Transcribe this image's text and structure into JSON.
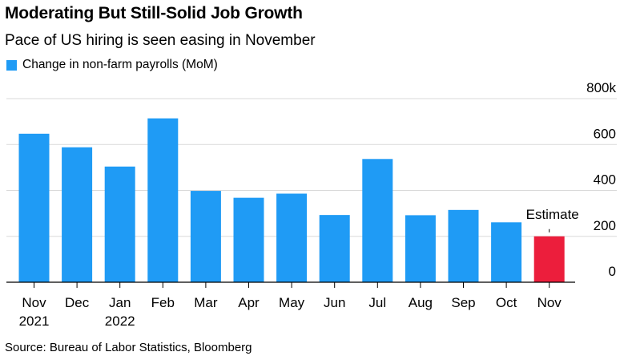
{
  "title": "Moderating But Still-Solid Job Growth",
  "subtitle": "Pace of US hiring is seen easing in November",
  "source": "Source: Bureau of Labor Statistics, Bloomberg",
  "colors": {
    "bar": "#1f9bf5",
    "estimate": "#ec1e3c",
    "grid": "#d9d9d9",
    "axis": "#000000"
  },
  "chart_data": {
    "type": "bar",
    "title": "Moderating But Still-Solid Job Growth",
    "subtitle": "Pace of US hiring is seen easing in November",
    "legend": [
      "Change in non-farm payrolls (MoM)"
    ],
    "categories": [
      {
        "label": "Nov",
        "sub": "2021"
      },
      {
        "label": "Dec",
        "sub": ""
      },
      {
        "label": "Jan",
        "sub": "2022"
      },
      {
        "label": "Feb",
        "sub": ""
      },
      {
        "label": "Mar",
        "sub": ""
      },
      {
        "label": "Apr",
        "sub": ""
      },
      {
        "label": "May",
        "sub": ""
      },
      {
        "label": "Jun",
        "sub": ""
      },
      {
        "label": "Jul",
        "sub": ""
      },
      {
        "label": "Aug",
        "sub": ""
      },
      {
        "label": "Sep",
        "sub": ""
      },
      {
        "label": "Oct",
        "sub": ""
      },
      {
        "label": "Nov",
        "sub": ""
      }
    ],
    "series": [
      {
        "name": "Change in non-farm payrolls (MoM)",
        "values": [
          647,
          588,
          504,
          714,
          398,
          368,
          386,
          293,
          537,
          292,
          315,
          261,
          200
        ]
      }
    ],
    "estimate_index": 12,
    "estimate_label": "Estimate",
    "ylim": [
      0,
      800
    ],
    "yticks": [
      0,
      200,
      400,
      600,
      800
    ],
    "ytick_labels": [
      "0",
      "200",
      "400",
      "600",
      "800k"
    ],
    "ylabel_position": "right",
    "grid": true,
    "xlabel": "",
    "ylabel": ""
  }
}
